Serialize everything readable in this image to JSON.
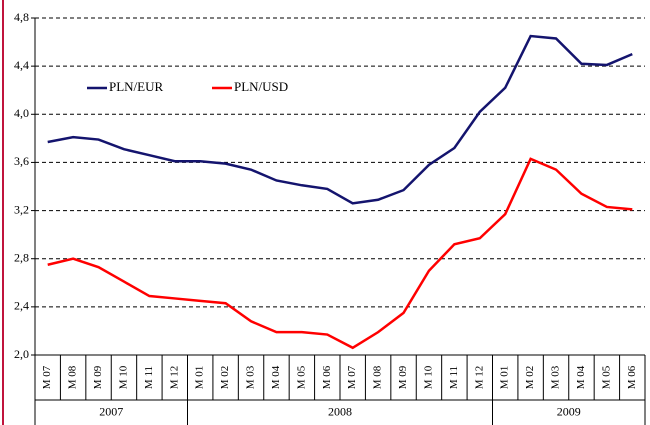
{
  "chart_data": {
    "type": "line",
    "categories": [
      "M 07",
      "M 08",
      "M 09",
      "M 10",
      "M 11",
      "M 12",
      "M 01",
      "M 02",
      "M 03",
      "M 04",
      "M 05",
      "M 06",
      "M 07",
      "M 08",
      "M 09",
      "M 10",
      "M 11",
      "M 12",
      "M 01",
      "M 02",
      "M 03",
      "M 04",
      "M 05",
      "M 06"
    ],
    "year_groups": [
      {
        "label": "2007",
        "count": 6
      },
      {
        "label": "2008",
        "count": 12
      },
      {
        "label": "2009",
        "count": 6
      }
    ],
    "series": [
      {
        "name": "PLN/EUR",
        "color": "#14146e",
        "values": [
          3.77,
          3.81,
          3.79,
          3.71,
          3.66,
          3.61,
          3.61,
          3.59,
          3.54,
          3.45,
          3.41,
          3.38,
          3.26,
          3.29,
          3.37,
          3.58,
          3.72,
          4.02,
          4.22,
          4.65,
          4.63,
          4.42,
          4.41,
          4.5
        ]
      },
      {
        "name": "PLN/USD",
        "color": "#ff0000",
        "values": [
          2.75,
          2.8,
          2.73,
          2.61,
          2.49,
          2.47,
          2.45,
          2.43,
          2.28,
          2.19,
          2.19,
          2.17,
          2.06,
          2.19,
          2.35,
          2.7,
          2.92,
          2.97,
          3.17,
          3.63,
          3.54,
          3.34,
          3.23,
          3.21
        ]
      }
    ],
    "ylim": [
      2.0,
      4.8
    ],
    "yticks": [
      {
        "value": 2.0,
        "label": "2,0"
      },
      {
        "value": 2.4,
        "label": "2,4"
      },
      {
        "value": 2.8,
        "label": "2,8"
      },
      {
        "value": 3.2,
        "label": "3,2"
      },
      {
        "value": 3.6,
        "label": "3,6"
      },
      {
        "value": 4.0,
        "label": "4,0"
      },
      {
        "value": 4.4,
        "label": "4,4"
      },
      {
        "value": 4.8,
        "label": "4,8"
      }
    ],
    "grid": true,
    "legend": "top-left"
  }
}
